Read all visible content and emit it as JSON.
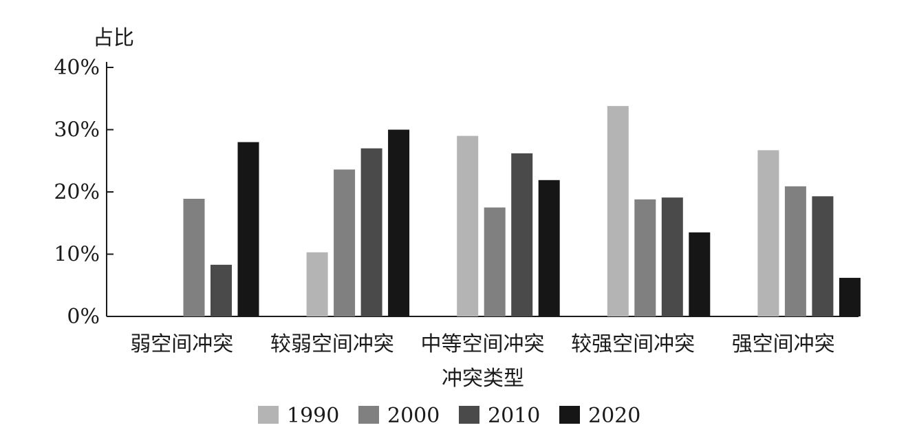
{
  "chart_data": {
    "type": "bar",
    "ylabel": "占比",
    "xlabel": "冲突类型",
    "ylim": [
      0,
      40
    ],
    "yticks": [
      0,
      10,
      20,
      30,
      40
    ],
    "ytick_labels": [
      "0%",
      "10%",
      "20%",
      "30%",
      "40%"
    ],
    "categories": [
      "弱空间冲突",
      "较弱空间冲突",
      "中等空间冲突",
      "较强空间冲突",
      "强空间冲突"
    ],
    "series": [
      {
        "name": "1990",
        "color": "#b4b4b4",
        "values": [
          0,
          10.3,
          29.0,
          33.8,
          26.7
        ]
      },
      {
        "name": "2000",
        "color": "#808080",
        "values": [
          18.9,
          23.6,
          17.5,
          18.8,
          20.9
        ]
      },
      {
        "name": "2010",
        "color": "#4a4a4a",
        "values": [
          8.3,
          27.0,
          26.2,
          19.1,
          19.3
        ]
      },
      {
        "name": "2020",
        "color": "#161616",
        "values": [
          28.0,
          30.0,
          21.9,
          13.5,
          6.2
        ]
      }
    ],
    "legend_position": "bottom",
    "grid": false
  }
}
